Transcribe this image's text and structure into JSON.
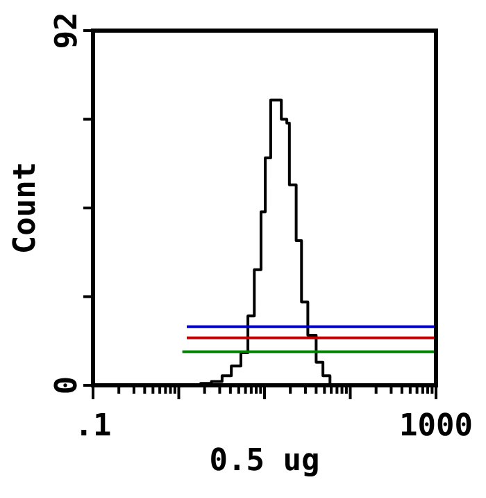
{
  "chart_data": {
    "type": "step",
    "xlabel": "0.5 ug",
    "ylabel": "Count",
    "log": "x",
    "xlim": [
      0.1,
      1000
    ],
    "ylim": [
      0,
      92
    ],
    "xticks": [
      {
        "value": 0.1,
        "label": ".1"
      },
      {
        "value": 0.2,
        "label": null
      },
      {
        "value": 0.3,
        "label": null
      },
      {
        "value": 0.4,
        "label": null
      },
      {
        "value": 0.5,
        "label": null
      },
      {
        "value": 0.6,
        "label": null
      },
      {
        "value": 0.7,
        "label": null
      },
      {
        "value": 0.8,
        "label": null
      },
      {
        "value": 0.9,
        "label": null
      },
      {
        "value": 1,
        "label": null
      },
      {
        "value": 2,
        "label": null
      },
      {
        "value": 3,
        "label": null
      },
      {
        "value": 4,
        "label": null
      },
      {
        "value": 5,
        "label": null
      },
      {
        "value": 6,
        "label": null
      },
      {
        "value": 7,
        "label": null
      },
      {
        "value": 8,
        "label": null
      },
      {
        "value": 9,
        "label": null
      },
      {
        "value": 10,
        "label": null
      },
      {
        "value": 20,
        "label": null
      },
      {
        "value": 30,
        "label": null
      },
      {
        "value": 40,
        "label": null
      },
      {
        "value": 50,
        "label": null
      },
      {
        "value": 60,
        "label": null
      },
      {
        "value": 70,
        "label": null
      },
      {
        "value": 80,
        "label": null
      },
      {
        "value": 90,
        "label": null
      },
      {
        "value": 100,
        "label": null
      },
      {
        "value": 200,
        "label": null
      },
      {
        "value": 300,
        "label": null
      },
      {
        "value": 400,
        "label": null
      },
      {
        "value": 500,
        "label": null
      },
      {
        "value": 600,
        "label": null
      },
      {
        "value": 700,
        "label": null
      },
      {
        "value": 800,
        "label": null
      },
      {
        "value": 900,
        "label": null
      },
      1000
    ],
    "yticks": [
      0,
      {
        "value": 23,
        "label": null
      },
      {
        "value": 46,
        "label": null
      },
      {
        "value": 69,
        "label": null
      },
      92
    ],
    "series": [
      {
        "color": "#000000",
        "x": [
          0.1,
          0.87,
          1.8,
          2.4,
          3.2,
          4.1,
          5.3,
          6.4,
          7.6,
          9.1,
          10.2,
          11.8,
          14.1,
          15.7,
          18.2,
          19.5,
          23.4,
          27,
          32,
          40,
          48,
          58,
          1000
        ],
        "values": [
          0,
          0,
          0.5,
          1,
          2.5,
          5,
          8.5,
          18,
          30,
          45,
          59,
          74,
          74,
          69,
          68,
          52,
          37.5,
          21.6,
          13,
          6,
          2.5,
          0,
          0
        ]
      },
      {
        "type": "line",
        "color": "#0000c0",
        "x": [
          1.24,
          1000
        ],
        "values": [
          15.2,
          15.2
        ]
      },
      {
        "type": "line",
        "color": "#c00000",
        "x": [
          1.24,
          1000
        ],
        "values": [
          12.3,
          12.3
        ]
      },
      {
        "type": "line",
        "color": "#008000",
        "x": [
          1.1,
          1000
        ],
        "values": [
          8.7,
          8.7
        ]
      }
    ]
  }
}
